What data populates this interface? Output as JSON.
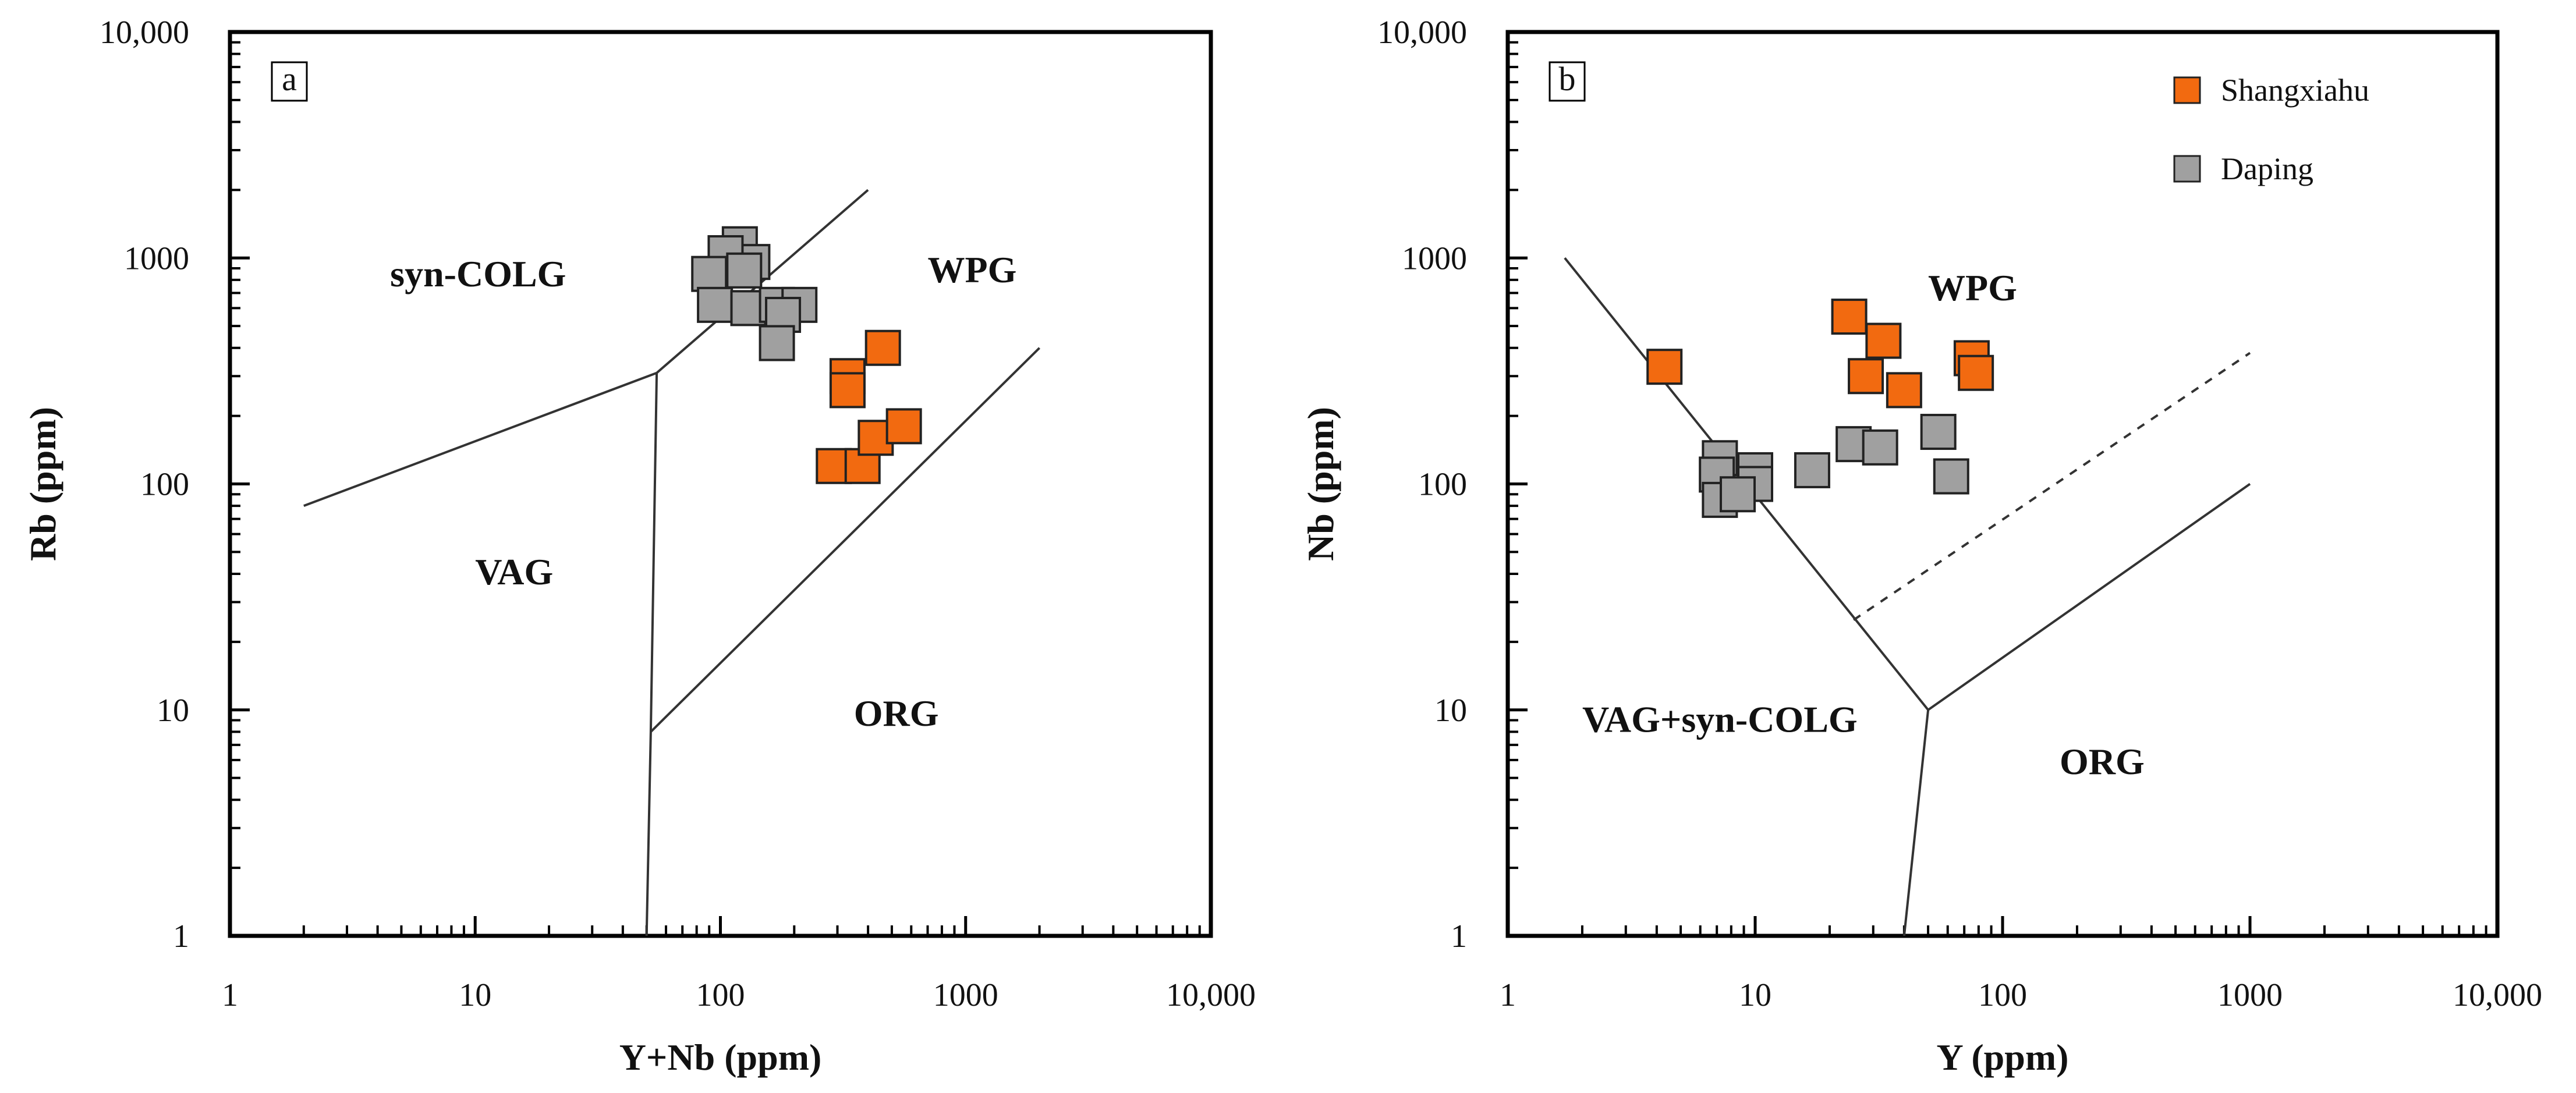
{
  "chart_data": [
    {
      "type": "scatter",
      "scale": "log-log",
      "panel_label": "a",
      "xlabel": "Y+Nb (ppm)",
      "ylabel": "Rb (ppm)",
      "xlim": [
        1,
        10000
      ],
      "ylim": [
        1,
        10000
      ],
      "x_tick_labels": [
        "1",
        "10",
        "100",
        "1000",
        "10,000"
      ],
      "y_tick_labels": [
        "1",
        "10",
        "100",
        "1000",
        "10,000"
      ],
      "fields": [
        {
          "name": "syn-COLG",
          "x": 4.5,
          "y": 750
        },
        {
          "name": "WPG",
          "x": 700,
          "y": 780
        },
        {
          "name": "VAG",
          "x": 10,
          "y": 36
        },
        {
          "name": "ORG",
          "x": 350,
          "y": 8.5
        }
      ],
      "boundaries": [
        {
          "style": "solid",
          "points": [
            [
              2,
              80
            ],
            [
              55,
              310
            ],
            [
              400,
              2000
            ]
          ]
        },
        {
          "style": "solid",
          "points": [
            [
              55,
              310
            ],
            [
              52,
              8
            ],
            [
              50,
              1
            ]
          ]
        },
        {
          "style": "solid",
          "points": [
            [
              52,
              8
            ],
            [
              2000,
              400
            ]
          ]
        }
      ],
      "series": [
        {
          "name": "Shangxiahu",
          "color": "#f26a10",
          "points": [
            [
              330,
              300
            ],
            [
              330,
              260
            ],
            [
              460,
              400
            ],
            [
              290,
              120
            ],
            [
              380,
              120
            ],
            [
              430,
              160
            ],
            [
              560,
              180
            ]
          ]
        },
        {
          "name": "Daping",
          "color": "#a0a0a0",
          "points": [
            [
              120,
              1150
            ],
            [
              135,
              960
            ],
            [
              105,
              1050
            ],
            [
              90,
              850
            ],
            [
              125,
              880
            ],
            [
              95,
              620
            ],
            [
              130,
              600
            ],
            [
              170,
              620
            ],
            [
              210,
              620
            ],
            [
              180,
              560
            ],
            [
              170,
              420
            ]
          ]
        }
      ]
    },
    {
      "type": "scatter",
      "scale": "log-log",
      "panel_label": "b",
      "xlabel": "Y (ppm)",
      "ylabel": "Nb (ppm)",
      "xlim": [
        1,
        10000
      ],
      "ylim": [
        1,
        10000
      ],
      "x_tick_labels": [
        "1",
        "10",
        "100",
        "1000",
        "10,000"
      ],
      "y_tick_labels": [
        "1",
        "10",
        "100",
        "1000",
        "10,000"
      ],
      "legend": {
        "position": "top-right",
        "entries": [
          "Shangxiahu",
          "Daping"
        ]
      },
      "fields": [
        {
          "name": "WPG",
          "x": 50,
          "y": 650
        },
        {
          "name": "VAG+syn-COLG",
          "x": 2,
          "y": 8
        },
        {
          "name": "ORG",
          "x": 170,
          "y": 5.2
        }
      ],
      "boundaries": [
        {
          "style": "solid",
          "points": [
            [
              1.7,
              1000
            ],
            [
              50,
              10
            ]
          ]
        },
        {
          "style": "solid",
          "points": [
            [
              50,
              10
            ],
            [
              1000,
              100
            ]
          ]
        },
        {
          "style": "solid",
          "points": [
            [
              50,
              10
            ],
            [
              40,
              1
            ]
          ]
        },
        {
          "style": "dashed",
          "points": [
            [
              25,
              25
            ],
            [
              1000,
              380
            ]
          ]
        }
      ],
      "series": [
        {
          "name": "Shangxiahu",
          "color": "#f26a10",
          "points": [
            [
              4.3,
              330
            ],
            [
              24,
              550
            ],
            [
              33,
              430
            ],
            [
              28,
              300
            ],
            [
              40,
              260
            ],
            [
              75,
              360
            ],
            [
              78,
              310
            ]
          ]
        },
        {
          "name": "Daping",
          "color": "#a0a0a0",
          "points": [
            [
              7.2,
              130
            ],
            [
              7,
              110
            ],
            [
              7.2,
              85
            ],
            [
              10,
              115
            ],
            [
              10,
              100
            ],
            [
              8.5,
              90
            ],
            [
              17,
              115
            ],
            [
              25,
              150
            ],
            [
              32,
              145
            ],
            [
              55,
              170
            ],
            [
              62,
              108
            ]
          ]
        }
      ]
    }
  ]
}
